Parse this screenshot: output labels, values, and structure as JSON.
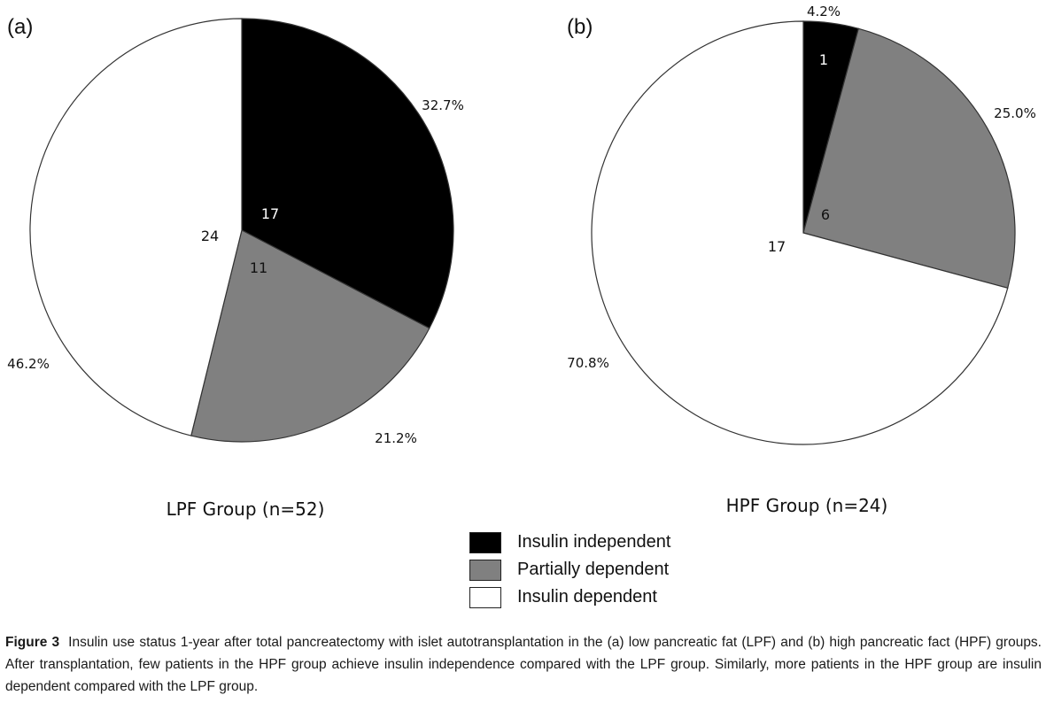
{
  "chart_data": [
    {
      "type": "pie",
      "panel": "(a)",
      "group_label": "LPF Group (n=52)",
      "categories": [
        "Insulin independent",
        "Partially dependent",
        "Insulin dependent"
      ],
      "counts": [
        17,
        11,
        24
      ],
      "percent_labels": [
        "32.7%",
        "21.2%",
        "46.2%"
      ],
      "values": [
        32.7,
        21.2,
        46.2
      ],
      "colors": [
        "#000000",
        "#808080",
        "#ffffff"
      ]
    },
    {
      "type": "pie",
      "panel": "(b)",
      "group_label": "HPF Group (n=24)",
      "categories": [
        "Insulin independent",
        "Partially dependent",
        "Insulin dependent"
      ],
      "counts": [
        1,
        6,
        17
      ],
      "percent_labels": [
        "4.2%",
        "25.0%",
        "70.8%"
      ],
      "values": [
        4.2,
        25.0,
        70.8
      ],
      "colors": [
        "#000000",
        "#808080",
        "#ffffff"
      ]
    }
  ],
  "legend": {
    "items": [
      {
        "label": "Insulin independent",
        "color": "#000000"
      },
      {
        "label": "Partially dependent",
        "color": "#808080"
      },
      {
        "label": "Insulin dependent",
        "color": "#ffffff"
      }
    ]
  },
  "caption": {
    "figure_label": "Figure 3",
    "text": "Insulin use status 1-year after total pancreatectomy with islet autotransplantation in the (a) low pancreatic fat (LPF) and (b) high pancreatic fact (HPF) groups. After transplantation, few patients in the HPF group achieve insulin independence compared with the LPF group. Similarly, more patients in the HPF group are insulin dependent compared with the LPF group."
  }
}
